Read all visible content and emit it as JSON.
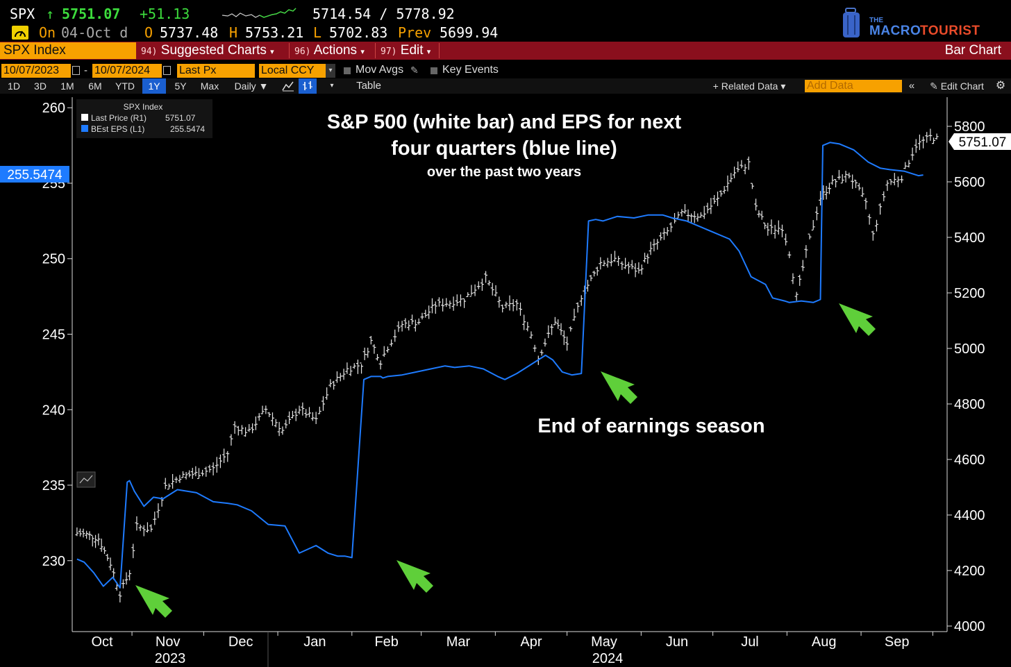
{
  "quote": {
    "ticker": "SPX",
    "arrow": "↑",
    "last": "5751.07",
    "change": "+51.13",
    "range": "5714.54 / 5778.92",
    "on_label": "On",
    "date": "04-Oct d",
    "open_label": "O",
    "open": "5737.48",
    "high_label": "H",
    "high": "5753.21",
    "low_label": "L",
    "low": "5702.83",
    "prev_label": "Prev",
    "prev": "5699.94"
  },
  "logo": {
    "small": "THE",
    "word1": "MACRO",
    "word2": "TOURIST"
  },
  "menu": {
    "security": "SPX Index",
    "items": [
      {
        "num": "94)",
        "label": "Suggested Charts"
      },
      {
        "num": "96)",
        "label": "Actions"
      },
      {
        "num": "97)",
        "label": "Edit"
      }
    ],
    "chart_type": "Bar Chart"
  },
  "controls": {
    "start_date": "10/07/2023",
    "end_date": "10/07/2024",
    "dash": "-",
    "field": "Last Px",
    "currency": "Local CCY",
    "mov_avgs": "Mov Avgs",
    "key_events": "Key Events"
  },
  "rangebar": {
    "periods": [
      "1D",
      "3D",
      "1M",
      "6M",
      "YTD",
      "1Y",
      "5Y",
      "Max"
    ],
    "selected": "1Y",
    "freq": "Daily ▼",
    "table": "Table",
    "related": "+ Related Data ▾",
    "add_data": "Add Data",
    "edit_chart": "Edit Chart"
  },
  "legend": {
    "title": "SPX Index",
    "rows": [
      {
        "label": "Last Price  (R1)",
        "value": "5751.07",
        "color": "#ffffff"
      },
      {
        "label": "BEst EPS  (L1)",
        "value": "255.5474",
        "color": "#1e7bff"
      }
    ]
  },
  "colors": {
    "eps": "#1e7bff",
    "arrow": "#5fcf3a",
    "price": "#e6e6e6"
  },
  "chart_data": {
    "type": "line",
    "title": "S&P 500 (white bar) and EPS for next four quarters (blue line)",
    "subtitle": "over the past two years",
    "annotation": "End of earnings season",
    "left_axis": {
      "ticks": [
        "230",
        "235",
        "240",
        "245",
        "250",
        "255",
        "260"
      ],
      "ylim": [
        225.3,
        260.7
      ],
      "current_label": "255.5474"
    },
    "right_axis": {
      "ticks": [
        "4000",
        "4200",
        "4400",
        "4600",
        "4800",
        "5000",
        "5200",
        "5400",
        "5600",
        "5800"
      ],
      "ylim": [
        3980,
        5905
      ],
      "current_label": "5751.07"
    },
    "x_axis": {
      "months": [
        "Oct",
        "Nov",
        "Dec",
        "Jan",
        "Feb",
        "Mar",
        "Apr",
        "May",
        "Jun",
        "Jul",
        "Aug",
        "Sep"
      ],
      "years": [
        "2023",
        "2024"
      ]
    },
    "series": [
      {
        "name": "BEst EPS",
        "axis": "left",
        "x": [
          "2023-10-09",
          "2023-10-12",
          "2023-10-16",
          "2023-10-20",
          "2023-10-24",
          "2023-10-27",
          "2023-10-30",
          "2023-10-31",
          "2023-11-02",
          "2023-11-06",
          "2023-11-10",
          "2023-11-14",
          "2023-11-20",
          "2023-11-28",
          "2023-12-05",
          "2023-12-11",
          "2023-12-15",
          "2023-12-21",
          "2023-12-28",
          "2024-01-04",
          "2024-01-10",
          "2024-01-17",
          "2024-01-22",
          "2024-01-26",
          "2024-01-29",
          "2024-02-01",
          "2024-02-06",
          "2024-02-09",
          "2024-02-13",
          "2024-02-14",
          "2024-02-16",
          "2024-02-22",
          "2024-02-28",
          "2024-03-05",
          "2024-03-11",
          "2024-03-15",
          "2024-03-21",
          "2024-03-27",
          "2024-04-02",
          "2024-04-05",
          "2024-04-10",
          "2024-04-16",
          "2024-04-22",
          "2024-04-25",
          "2024-04-29",
          "2024-05-03",
          "2024-05-07",
          "2024-05-10",
          "2024-05-13",
          "2024-05-16",
          "2024-05-22",
          "2024-05-29",
          "2024-06-04",
          "2024-06-10",
          "2024-06-14",
          "2024-06-20",
          "2024-06-26",
          "2024-07-02",
          "2024-07-08",
          "2024-07-12",
          "2024-07-17",
          "2024-07-23",
          "2024-07-26",
          "2024-07-31",
          "2024-08-02",
          "2024-08-07",
          "2024-08-12",
          "2024-08-15",
          "2024-08-16",
          "2024-08-19",
          "2024-08-23",
          "2024-08-29",
          "2024-09-04",
          "2024-09-09",
          "2024-09-13",
          "2024-09-19",
          "2024-09-25",
          "2024-09-27"
        ],
        "values": [
          230.1,
          229.9,
          229.2,
          228.3,
          228.9,
          228.2,
          235.2,
          235.3,
          234.6,
          233.6,
          234.2,
          234.1,
          234.7,
          234.5,
          233.9,
          233.8,
          233.7,
          233.3,
          232.4,
          232.3,
          230.5,
          231.0,
          230.5,
          230.3,
          230.3,
          230.2,
          242.0,
          242.2,
          242.2,
          242.1,
          242.2,
          242.3,
          242.5,
          242.7,
          242.9,
          242.8,
          242.9,
          242.7,
          242.2,
          242.0,
          242.4,
          243.0,
          243.6,
          243.3,
          242.5,
          242.3,
          242.4,
          252.5,
          252.6,
          252.5,
          252.8,
          252.7,
          252.9,
          252.9,
          252.7,
          252.5,
          252.1,
          251.7,
          251.3,
          250.5,
          248.8,
          248.3,
          247.4,
          247.2,
          247.1,
          247.2,
          247.1,
          247.3,
          257.5,
          257.7,
          257.6,
          257.2,
          256.4,
          256.0,
          255.9,
          255.8,
          255.5,
          255.5474
        ]
      },
      {
        "name": "Last Price",
        "axis": "right",
        "x": [
          "2023-10-09",
          "2023-10-13",
          "2023-10-18",
          "2023-10-23",
          "2023-10-27",
          "2023-10-31",
          "2023-11-03",
          "2023-11-09",
          "2023-11-15",
          "2023-11-21",
          "2023-11-29",
          "2023-12-05",
          "2023-12-11",
          "2023-12-14",
          "2023-12-20",
          "2023-12-27",
          "2024-01-03",
          "2024-01-10",
          "2024-01-17",
          "2024-01-23",
          "2024-01-30",
          "2024-02-05",
          "2024-02-09",
          "2024-02-13",
          "2024-02-16",
          "2024-02-22",
          "2024-02-29",
          "2024-03-07",
          "2024-03-13",
          "2024-03-19",
          "2024-03-28",
          "2024-04-04",
          "2024-04-10",
          "2024-04-16",
          "2024-04-19",
          "2024-04-26",
          "2024-05-01",
          "2024-05-07",
          "2024-05-15",
          "2024-05-21",
          "2024-05-24",
          "2024-05-31",
          "2024-06-05",
          "2024-06-12",
          "2024-06-18",
          "2024-06-26",
          "2024-07-03",
          "2024-07-10",
          "2024-07-16",
          "2024-07-19",
          "2024-07-24",
          "2024-07-30",
          "2024-08-02",
          "2024-08-05",
          "2024-08-09",
          "2024-08-15",
          "2024-08-20",
          "2024-08-27",
          "2024-09-03",
          "2024-09-06",
          "2024-09-12",
          "2024-09-18",
          "2024-09-24",
          "2024-09-30",
          "2024-10-04"
        ],
        "values": [
          4335,
          4330,
          4315,
          4225,
          4118,
          4194,
          4359,
          4347,
          4503,
          4538,
          4551,
          4567,
          4622,
          4720,
          4698,
          4781,
          4704,
          4783,
          4740,
          4865,
          4925,
          4943,
          5026,
          4953,
          5005,
          5087,
          5096,
          5157,
          5165,
          5178,
          5254,
          5147,
          5161,
          5051,
          4967,
          5100,
          5018,
          5188,
          5308,
          5321,
          5305,
          5278,
          5354,
          5421,
          5487,
          5477,
          5537,
          5633,
          5667,
          5505,
          5427,
          5436,
          5346,
          5186,
          5344,
          5543,
          5597,
          5625,
          5528,
          5408,
          5595,
          5618,
          5732,
          5762,
          5751
        ]
      }
    ]
  }
}
